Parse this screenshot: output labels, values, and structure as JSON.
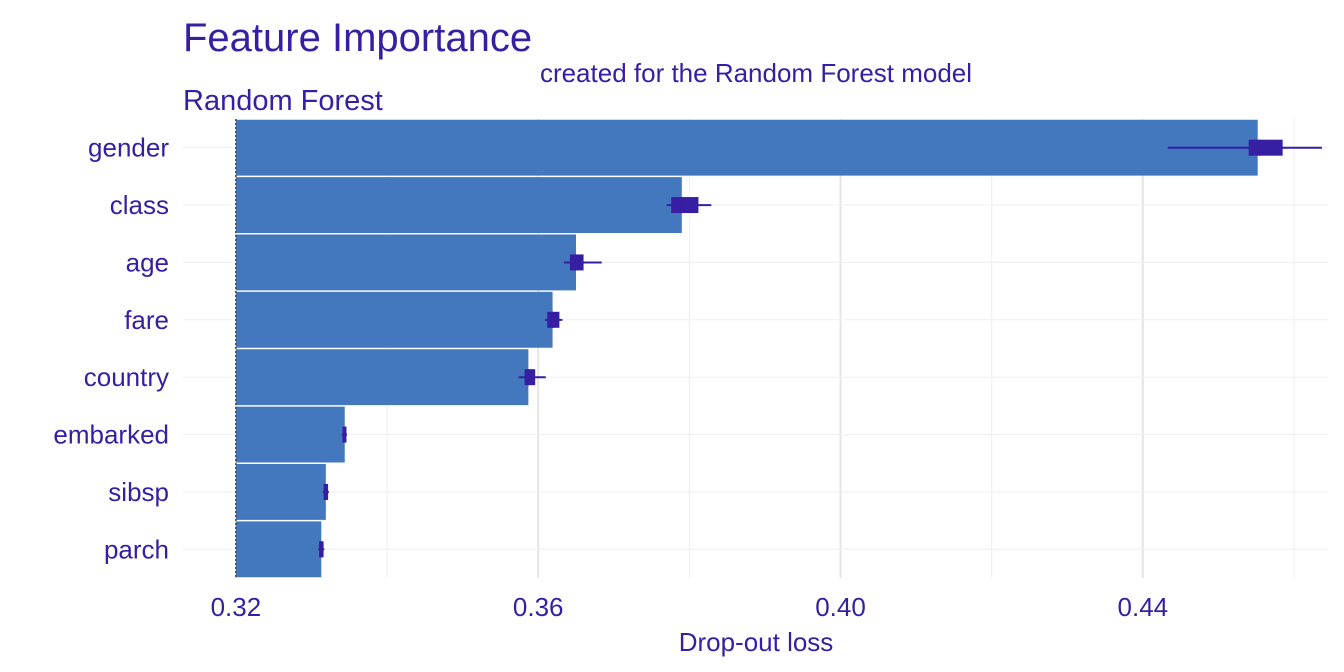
{
  "chart_data": {
    "type": "bar",
    "orientation": "horizontal",
    "title": "Feature Importance",
    "subtitle": "created for the Random Forest model",
    "panel_label": "Random Forest",
    "xlabel": "Drop-out loss",
    "ylabel": "",
    "baseline": 0.32,
    "xlim": [
      0.313,
      0.4645
    ],
    "x_ticks": [
      0.32,
      0.36,
      0.4,
      0.44
    ],
    "x_tick_labels": [
      "0.32",
      "0.36",
      "0.40",
      "0.44"
    ],
    "grid": true,
    "legend": "none",
    "categories": [
      "gender",
      "class",
      "age",
      "fare",
      "country",
      "embarked",
      "sibsp",
      "parch"
    ],
    "values": [
      0.4552,
      0.379,
      0.365,
      0.3619,
      0.3587,
      0.3344,
      0.3319,
      0.3313
    ],
    "boxplots": [
      {
        "min": 0.4433,
        "q1": 0.454,
        "median": 0.4555,
        "q3": 0.4585,
        "max": 0.4637
      },
      {
        "min": 0.377,
        "q1": 0.3776,
        "median": 0.379,
        "q3": 0.3812,
        "max": 0.3829
      },
      {
        "min": 0.3634,
        "q1": 0.3642,
        "median": 0.365,
        "q3": 0.366,
        "max": 0.3684
      },
      {
        "min": 0.3609,
        "q1": 0.3612,
        "median": 0.3619,
        "q3": 0.3628,
        "max": 0.3632
      },
      {
        "min": 0.3574,
        "q1": 0.3582,
        "median": 0.3587,
        "q3": 0.3596,
        "max": 0.361
      },
      {
        "min": 0.334,
        "q1": 0.3341,
        "median": 0.3344,
        "q3": 0.3346,
        "max": 0.3347
      },
      {
        "min": 0.3315,
        "q1": 0.3316,
        "median": 0.3319,
        "q3": 0.3322,
        "max": 0.3323
      },
      {
        "min": 0.3309,
        "q1": 0.331,
        "median": 0.3313,
        "q3": 0.3316,
        "max": 0.3317
      }
    ],
    "colors": {
      "bar": "#4378BF",
      "box": "#371EA3",
      "text": "#371EA3",
      "grid": "#E5E5E5",
      "grid_minor": "#F0F0F0"
    }
  }
}
